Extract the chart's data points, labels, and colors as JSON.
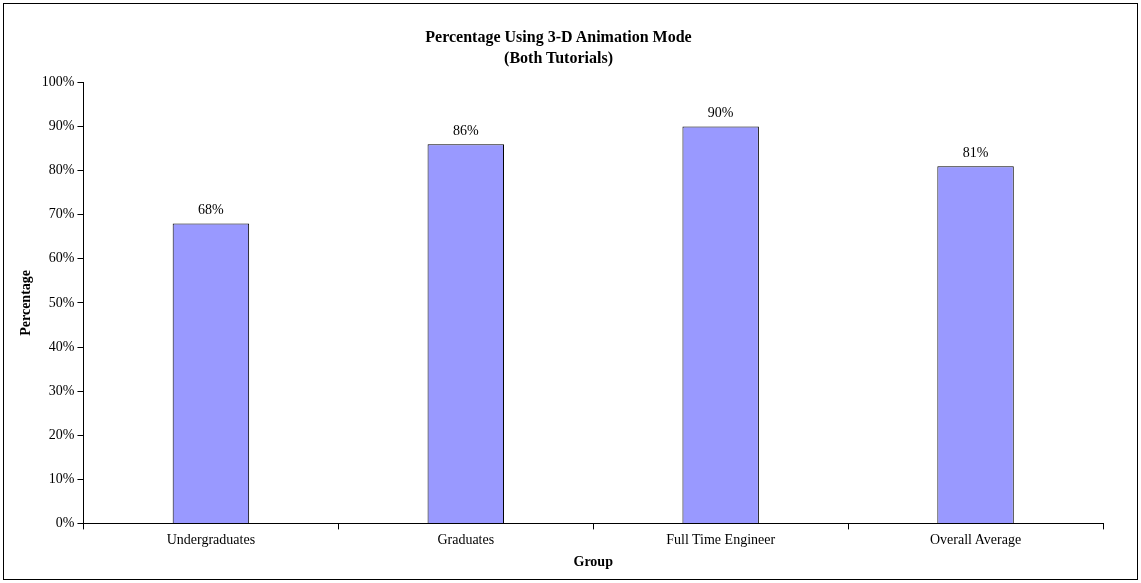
{
  "chart_data": {
    "type": "bar",
    "title": "Percentage Using 3-D Animation Mode",
    "subtitle": "(Both Tutorials)",
    "xlabel": "Group",
    "ylabel": "Percentage",
    "categories": [
      "Undergraduates",
      "Graduates",
      "Full Time Engineer",
      "Overall Average"
    ],
    "values": [
      68,
      86,
      90,
      81
    ],
    "color": "#9999ff",
    "value_labels": [
      "68%",
      "86%",
      "90%",
      "81%"
    ],
    "ylim": [
      0,
      100
    ],
    "yticks": [
      {
        "value": 0,
        "label": "0%"
      },
      {
        "value": 10,
        "label": "10%"
      },
      {
        "value": 20,
        "label": "20%"
      },
      {
        "value": 30,
        "label": "30%"
      },
      {
        "value": 40,
        "label": "40%"
      },
      {
        "value": 50,
        "label": "50%"
      },
      {
        "value": 60,
        "label": "60%"
      },
      {
        "value": 70,
        "label": "70%"
      },
      {
        "value": 80,
        "label": "80%"
      },
      {
        "value": 90,
        "label": "90%"
      },
      {
        "value": 100,
        "label": "100%"
      }
    ],
    "grid": false,
    "legend": false
  }
}
